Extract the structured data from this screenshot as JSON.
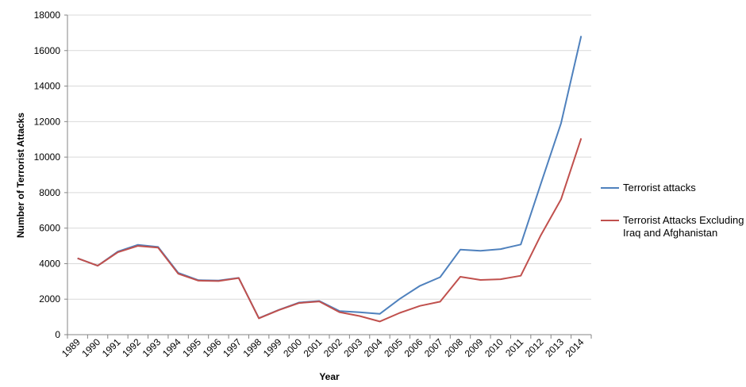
{
  "chart_data": {
    "type": "line",
    "xlabel": "Year",
    "ylabel": "Number of Terrorist Attacks",
    "ylim": [
      0,
      18000
    ],
    "yticks": [
      0,
      2000,
      4000,
      6000,
      8000,
      10000,
      12000,
      14000,
      16000,
      18000
    ],
    "grid": "horizontal",
    "legend_position": "right",
    "categories": [
      "1989",
      "1990",
      "1991",
      "1992",
      "1993",
      "1994",
      "1995",
      "1996",
      "1997",
      "1998",
      "1999",
      "2000",
      "2001",
      "2002",
      "2003",
      "2004",
      "2005",
      "2006",
      "2007",
      "2008",
      "2009",
      "2010",
      "2011",
      "2012",
      "2013",
      "2014"
    ],
    "series": [
      {
        "name": "Terrorist attacks",
        "color": "#4f81bd",
        "values": [
          4300,
          3880,
          4680,
          5060,
          4940,
          3480,
          3070,
          3050,
          3200,
          930,
          1400,
          1810,
          1900,
          1330,
          1260,
          1170,
          2020,
          2750,
          3240,
          4790,
          4720,
          4820,
          5080,
          8500,
          11900,
          16820
        ]
      },
      {
        "name": "Terrorist Attacks Excluding Iraq and Afghanistan",
        "legend_lines": [
          "Terrorist Attacks Excluding",
          "Iraq and Afghanistan"
        ],
        "color": "#c0504d",
        "values": [
          4300,
          3880,
          4640,
          5000,
          4900,
          3430,
          3040,
          3020,
          3190,
          920,
          1390,
          1780,
          1870,
          1270,
          1050,
          740,
          1230,
          1620,
          1860,
          3260,
          3080,
          3120,
          3320,
          5600,
          7620,
          11060
        ]
      }
    ]
  }
}
